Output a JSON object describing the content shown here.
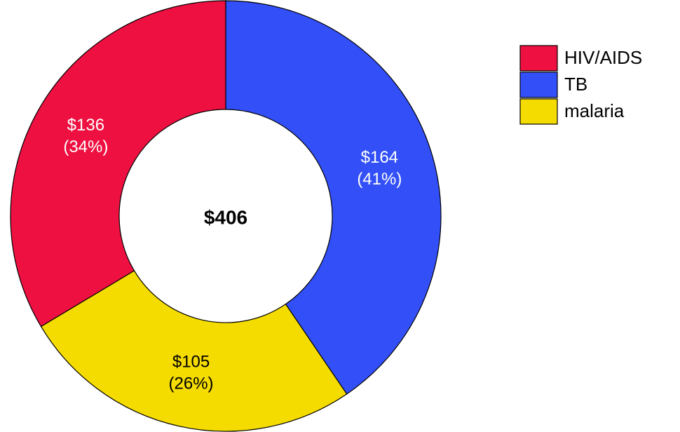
{
  "chart_data": {
    "type": "donut",
    "categories": [
      "HIV/AIDS",
      "TB",
      "malaria"
    ],
    "series": [
      {
        "values": [
          136,
          164,
          105
        ],
        "value_labels": [
          "$136",
          "$164",
          "$105"
        ],
        "percent_labels": [
          "(34%)",
          "(41%)",
          "(26%)"
        ],
        "colors": [
          "#ee1040",
          "#3350f8",
          "#f5dc00"
        ]
      }
    ],
    "center_label": "$406",
    "legend": "top-right"
  }
}
